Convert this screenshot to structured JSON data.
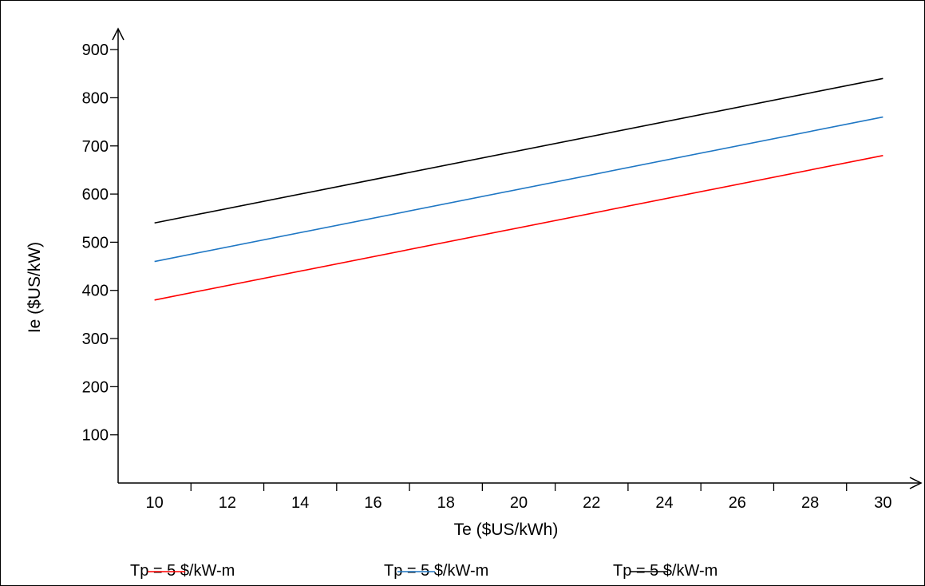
{
  "chart_data": {
    "type": "line",
    "xlabel": "Te ($US/kWh)",
    "ylabel": "Ie ($US/kW)",
    "x_ticks": [
      10,
      12,
      14,
      16,
      18,
      20,
      22,
      24,
      26,
      28,
      30
    ],
    "y_ticks": [
      100,
      200,
      300,
      400,
      500,
      600,
      700,
      800,
      900
    ],
    "xlim": [
      9,
      31
    ],
    "ylim": [
      0,
      940
    ],
    "grid": false,
    "legend_position": "bottom",
    "series": [
      {
        "name": "Tp = 5 $/kW-m",
        "color": "#ff0000",
        "x": [
          10,
          30
        ],
        "y": [
          380,
          680
        ]
      },
      {
        "name": "Tp = 5 $/kW-m",
        "color": "#1f77c4",
        "x": [
          10,
          30
        ],
        "y": [
          460,
          760
        ]
      },
      {
        "name": "Tp = 5 $/kW-m",
        "color": "#000000",
        "x": [
          10,
          30
        ],
        "y": [
          540,
          840
        ]
      }
    ]
  }
}
